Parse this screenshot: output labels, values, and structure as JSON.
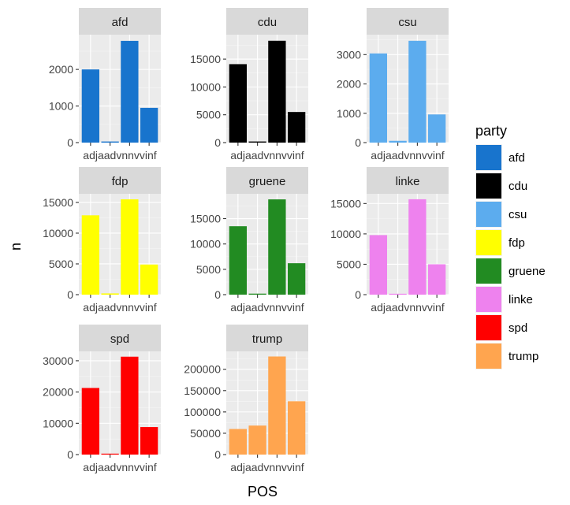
{
  "chart_data": {
    "type": "bar",
    "facet_by": "party",
    "xlabel": "POS",
    "ylabel": "n",
    "categories": [
      "adja",
      "adv",
      "nn",
      "vvinf"
    ],
    "tick_text": "adjaadvnnvvinf",
    "grid": true,
    "legend": {
      "title": "party",
      "position": "right",
      "entries": [
        {
          "label": "afd",
          "color": "#1874CD"
        },
        {
          "label": "cdu",
          "color": "#000000"
        },
        {
          "label": "csu",
          "color": "#5CACEE"
        },
        {
          "label": "fdp",
          "color": "#FFFF00"
        },
        {
          "label": "gruene",
          "color": "#228B22"
        },
        {
          "label": "linke",
          "color": "#EE82EE"
        },
        {
          "label": "spd",
          "color": "#FF0000"
        },
        {
          "label": "trump",
          "color": "#FFA54F"
        }
      ]
    },
    "facets": [
      {
        "name": "afd",
        "color": "#1874CD",
        "values": [
          2000,
          30,
          2780,
          950
        ],
        "ylim": [
          0,
          2950
        ],
        "yticks": [
          0,
          1000,
          2000
        ]
      },
      {
        "name": "cdu",
        "color": "#000000",
        "values": [
          14100,
          200,
          18300,
          5500
        ],
        "ylim": [
          0,
          19400
        ],
        "yticks": [
          0,
          5000,
          10000,
          15000
        ]
      },
      {
        "name": "csu",
        "color": "#5CACEE",
        "values": [
          3040,
          60,
          3470,
          960
        ],
        "ylim": [
          0,
          3680
        ],
        "yticks": [
          0,
          1000,
          2000,
          3000
        ]
      },
      {
        "name": "fdp",
        "color": "#FFFF00",
        "values": [
          12900,
          200,
          15500,
          4900
        ],
        "ylim": [
          0,
          16400
        ],
        "yticks": [
          0,
          5000,
          10000,
          15000
        ]
      },
      {
        "name": "gruene",
        "color": "#228B22",
        "values": [
          13500,
          200,
          18800,
          6200
        ],
        "ylim": [
          0,
          19900
        ],
        "yticks": [
          0,
          5000,
          10000,
          15000
        ]
      },
      {
        "name": "linke",
        "color": "#EE82EE",
        "values": [
          9800,
          150,
          15700,
          5000
        ],
        "ylim": [
          0,
          16600
        ],
        "yticks": [
          0,
          5000,
          10000,
          15000
        ]
      },
      {
        "name": "spd",
        "color": "#FF0000",
        "values": [
          21300,
          300,
          31300,
          8800
        ],
        "ylim": [
          0,
          33000
        ],
        "yticks": [
          0,
          10000,
          20000,
          30000
        ]
      },
      {
        "name": "trump",
        "color": "#FFA54F",
        "values": [
          60000,
          68000,
          230000,
          125000
        ],
        "ylim": [
          0,
          242000
        ],
        "yticks": [
          0,
          50000,
          100000,
          150000,
          200000
        ]
      }
    ]
  }
}
